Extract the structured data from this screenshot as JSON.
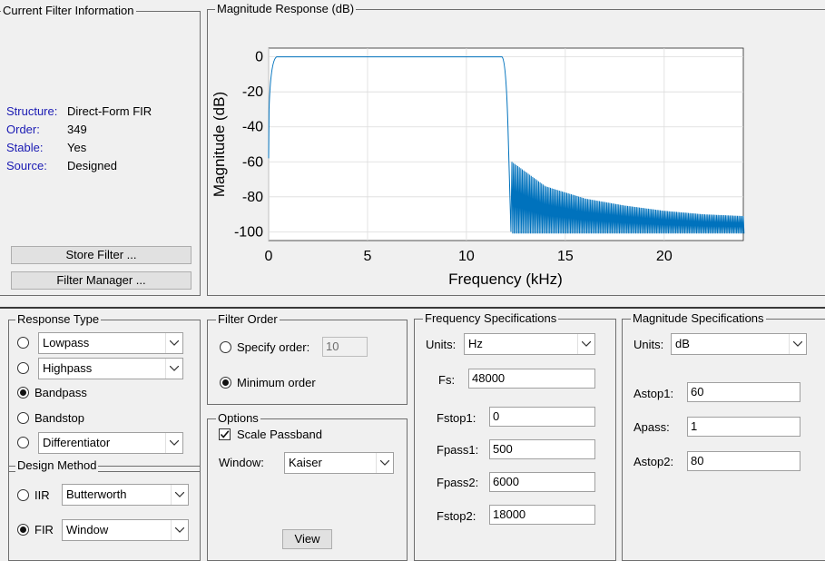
{
  "current_filter": {
    "title": "Current Filter Information",
    "rows": [
      {
        "key": "Structure:",
        "value": "Direct-Form FIR"
      },
      {
        "key": "Order:",
        "value": "349"
      },
      {
        "key": "Stable:",
        "value": "Yes"
      },
      {
        "key": "Source:",
        "value": "Designed"
      }
    ],
    "store_filter_label": "Store Filter ...",
    "filter_manager_label": "Filter Manager ..."
  },
  "magnitude_panel": {
    "title": "Magnitude Response (dB)"
  },
  "chart_data": {
    "type": "line",
    "xlabel": "Frequency (kHz)",
    "ylabel": "Magnitude (dB)",
    "xlim": [
      0,
      24
    ],
    "ylim": [
      -105,
      5
    ],
    "xticks": [
      "0",
      "5",
      "10",
      "15",
      "20"
    ],
    "yticks": [
      "0",
      "-20",
      "-40",
      "-60",
      "-80",
      "-100"
    ],
    "grid": true,
    "series_color": "#0072bd",
    "passband": {
      "x": [
        0.5,
        12.0
      ],
      "y": 0
    },
    "transition_edges_khz": [
      0.02,
      0.4,
      12.0,
      12.3
    ],
    "stopband_peaks": {
      "x": [
        12.3,
        14,
        16,
        18,
        20,
        22,
        24
      ],
      "y": [
        -60,
        -74,
        -81,
        -85,
        -88,
        -90,
        -91
      ]
    },
    "stopband_floor_db": -101
  },
  "response_type": {
    "title": "Response Type",
    "options": [
      {
        "label": "Lowpass",
        "kind": "combo",
        "selected": false
      },
      {
        "label": "Highpass",
        "kind": "combo",
        "selected": false
      },
      {
        "label": "Bandpass",
        "kind": "text",
        "selected": true
      },
      {
        "label": "Bandstop",
        "kind": "text",
        "selected": false
      },
      {
        "label": "Differentiator",
        "kind": "combo",
        "selected": false
      }
    ]
  },
  "design_method": {
    "title": "Design Method",
    "iir_label": "IIR",
    "iir_value": "Butterworth",
    "fir_label": "FIR",
    "fir_value": "Window",
    "selected": "FIR"
  },
  "filter_order": {
    "title": "Filter Order",
    "specify_label": "Specify order:",
    "specify_value": "10",
    "minimum_label": "Minimum order",
    "selected": "minimum"
  },
  "options": {
    "title": "Options",
    "scale_passband_label": "Scale Passband",
    "scale_passband_checked": true,
    "window_label": "Window:",
    "window_value": "Kaiser",
    "view_label": "View"
  },
  "freq_specs": {
    "title": "Frequency Specifications",
    "units_label": "Units:",
    "units_value": "Hz",
    "fs_label": "Fs:",
    "fs_value": "48000",
    "fields": [
      {
        "label": "Fstop1:",
        "value": "0"
      },
      {
        "label": "Fpass1:",
        "value": "500"
      },
      {
        "label": "Fpass2:",
        "value": "6000"
      },
      {
        "label": "Fstop2:",
        "value": "18000"
      }
    ]
  },
  "mag_specs": {
    "title": "Magnitude Specifications",
    "units_label": "Units:",
    "units_value": "dB",
    "fields": [
      {
        "label": "Astop1:",
        "value": "60"
      },
      {
        "label": "Apass:",
        "value": "1"
      },
      {
        "label": "Astop2:",
        "value": "80"
      }
    ]
  }
}
